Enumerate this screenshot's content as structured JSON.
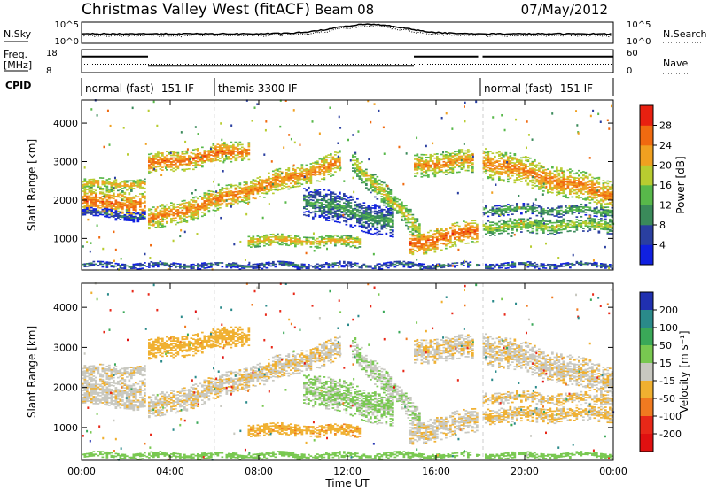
{
  "header": {
    "title": "Christmas Valley West (fitACF)",
    "beam": "Beam 08",
    "date": "07/May/2012"
  },
  "summary_panel": {
    "left_label": "N.Sky",
    "right_label": "N.Search",
    "left_ticks": [
      "10^5",
      "10^0"
    ],
    "right_ticks": [
      "10^5",
      "10^0"
    ]
  },
  "freq_panel": {
    "left_label_1": "Freq.",
    "left_label_2": "[MHz]",
    "right_label": "Nave",
    "left_ticks": [
      "18",
      "8"
    ],
    "right_ticks": [
      "60",
      "0"
    ]
  },
  "cpid": {
    "label": "CPID",
    "modes": [
      {
        "name": "normal (fast) -151 IF",
        "start_hour": 0,
        "end_hour": 6
      },
      {
        "name": "themis 3300 IF",
        "start_hour": 6,
        "end_hour": 18
      },
      {
        "name": "normal (fast) -151 IF",
        "start_hour": 18,
        "end_hour": 24
      }
    ]
  },
  "axes": {
    "x_label": "Time UT",
    "x_ticks": [
      "00:00",
      "04:00",
      "08:00",
      "12:00",
      "16:00",
      "20:00",
      "00:00"
    ],
    "y_label": "Slant Range [km]",
    "y_ticks": [
      "1000",
      "2000",
      "3000",
      "4000"
    ]
  },
  "colorbars": {
    "power": {
      "label": "Power [dB]",
      "ticks": [
        "4",
        "8",
        "12",
        "16",
        "20",
        "24",
        "28"
      ],
      "colors": [
        "#1020e0",
        "#2a3fa0",
        "#3a8a5a",
        "#58b84a",
        "#b8cc30",
        "#f0a020",
        "#f06a10",
        "#e82010"
      ]
    },
    "velocity": {
      "label": "Velocity [m s⁻¹]",
      "ticks": [
        "200",
        "100",
        "50",
        "15",
        "-15",
        "-50",
        "-100",
        "-200"
      ],
      "colors": [
        "#2030b0",
        "#2a8a8a",
        "#3aa858",
        "#78c850",
        "#c8c8c0",
        "#f0b030",
        "#f07a20",
        "#e82818",
        "#e01010"
      ]
    }
  },
  "chart_data": {
    "type": "heatmap",
    "x_range_hours": [
      0,
      24
    ],
    "y_range_km": [
      180,
      4600
    ],
    "echo_bands": [
      {
        "t0": 0.0,
        "t1": 2.9,
        "r0": 1950,
        "r1": 1850,
        "w": 350,
        "p": 26,
        "v": -5
      },
      {
        "t0": 0.0,
        "t1": 2.9,
        "r0": 2400,
        "r1": 2400,
        "w": 150,
        "p": 22,
        "v": -5
      },
      {
        "t0": 0.0,
        "t1": 2.9,
        "r0": 1650,
        "r1": 1550,
        "w": 120,
        "p": 8,
        "v": -5
      },
      {
        "t0": 3.0,
        "t1": 7.5,
        "r0": 2900,
        "r1": 3300,
        "w": 260,
        "p": 26,
        "v": -30
      },
      {
        "t0": 3.0,
        "t1": 11.6,
        "r0": 1450,
        "r1": 2950,
        "w": 300,
        "p": 25,
        "v": -10
      },
      {
        "t0": 7.5,
        "t1": 12.5,
        "r0": 950,
        "r1": 900,
        "w": 150,
        "p": 22,
        "v": -40
      },
      {
        "t0": 10.0,
        "t1": 14.0,
        "r0": 2000,
        "r1": 1400,
        "w": 400,
        "p": 12,
        "v": 20
      },
      {
        "t0": 12.2,
        "t1": 15.2,
        "r0": 3000,
        "r1": 1200,
        "w": 300,
        "p": 20,
        "v": 10
      },
      {
        "t0": 14.8,
        "t1": 18.0,
        "r0": 850,
        "r1": 1200,
        "w": 300,
        "p": 27,
        "v": -10
      },
      {
        "t0": 15.0,
        "t1": 17.7,
        "r0": 2900,
        "r1": 3000,
        "w": 300,
        "p": 24,
        "v": -10
      },
      {
        "t0": 18.1,
        "t1": 24.0,
        "r0": 3000,
        "r1": 2100,
        "w": 380,
        "p": 25,
        "v": -8
      },
      {
        "t0": 18.1,
        "t1": 24.0,
        "r0": 1750,
        "r1": 1700,
        "w": 150,
        "p": 14,
        "v": -15
      },
      {
        "t0": 18.1,
        "t1": 24.0,
        "r0": 1300,
        "r1": 1350,
        "w": 200,
        "p": 18,
        "v": -20
      },
      {
        "t0": 0.0,
        "t1": 24.0,
        "r0": 290,
        "r1": 290,
        "w": 80,
        "p": 10,
        "v": 30
      }
    ],
    "data_gap_hours": [
      17.9,
      18.1
    ],
    "freq_mhz": [
      {
        "t0": 0,
        "t1": 3,
        "f": 15
      },
      {
        "t0": 3,
        "t1": 15,
        "f": 11
      },
      {
        "t0": 15,
        "t1": 17.9,
        "f": 15
      },
      {
        "t0": 18.1,
        "t1": 24,
        "f": 15
      }
    ],
    "nave": [
      {
        "t0": 0,
        "t1": 24,
        "n": 22
      }
    ]
  }
}
